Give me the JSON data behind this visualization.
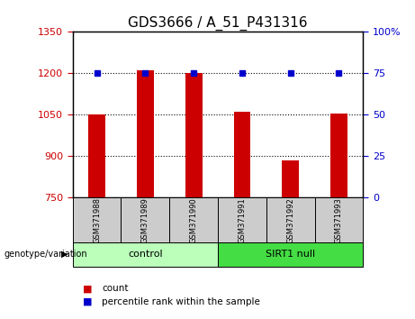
{
  "title": "GDS3666 / A_51_P431316",
  "samples": [
    "GSM371988",
    "GSM371989",
    "GSM371990",
    "GSM371991",
    "GSM371992",
    "GSM371993"
  ],
  "count_values": [
    1050,
    1210,
    1200,
    1062,
    885,
    1055
  ],
  "percentile_values": [
    75,
    75,
    75,
    75,
    75,
    75
  ],
  "ylim_left": [
    750,
    1350
  ],
  "ylim_right": [
    0,
    100
  ],
  "yticks_left": [
    750,
    900,
    1050,
    1200,
    1350
  ],
  "yticks_right": [
    0,
    25,
    50,
    75,
    100
  ],
  "ytick_labels_right": [
    "0",
    "25",
    "50",
    "75",
    "100%"
  ],
  "bar_color": "#cc0000",
  "dot_color": "#0000cc",
  "bar_bottom": 750,
  "control_color": "#bbffbb",
  "sirt1_color": "#44dd44",
  "group_label": "genotype/variation",
  "legend_count_label": "count",
  "legend_percentile_label": "percentile rank within the sample",
  "tick_color_left": "#cc0000",
  "tick_color_right": "#0000cc",
  "background_color": "#ffffff",
  "title_fontsize": 11,
  "tick_label_fontsize": 8,
  "bar_width": 0.35
}
